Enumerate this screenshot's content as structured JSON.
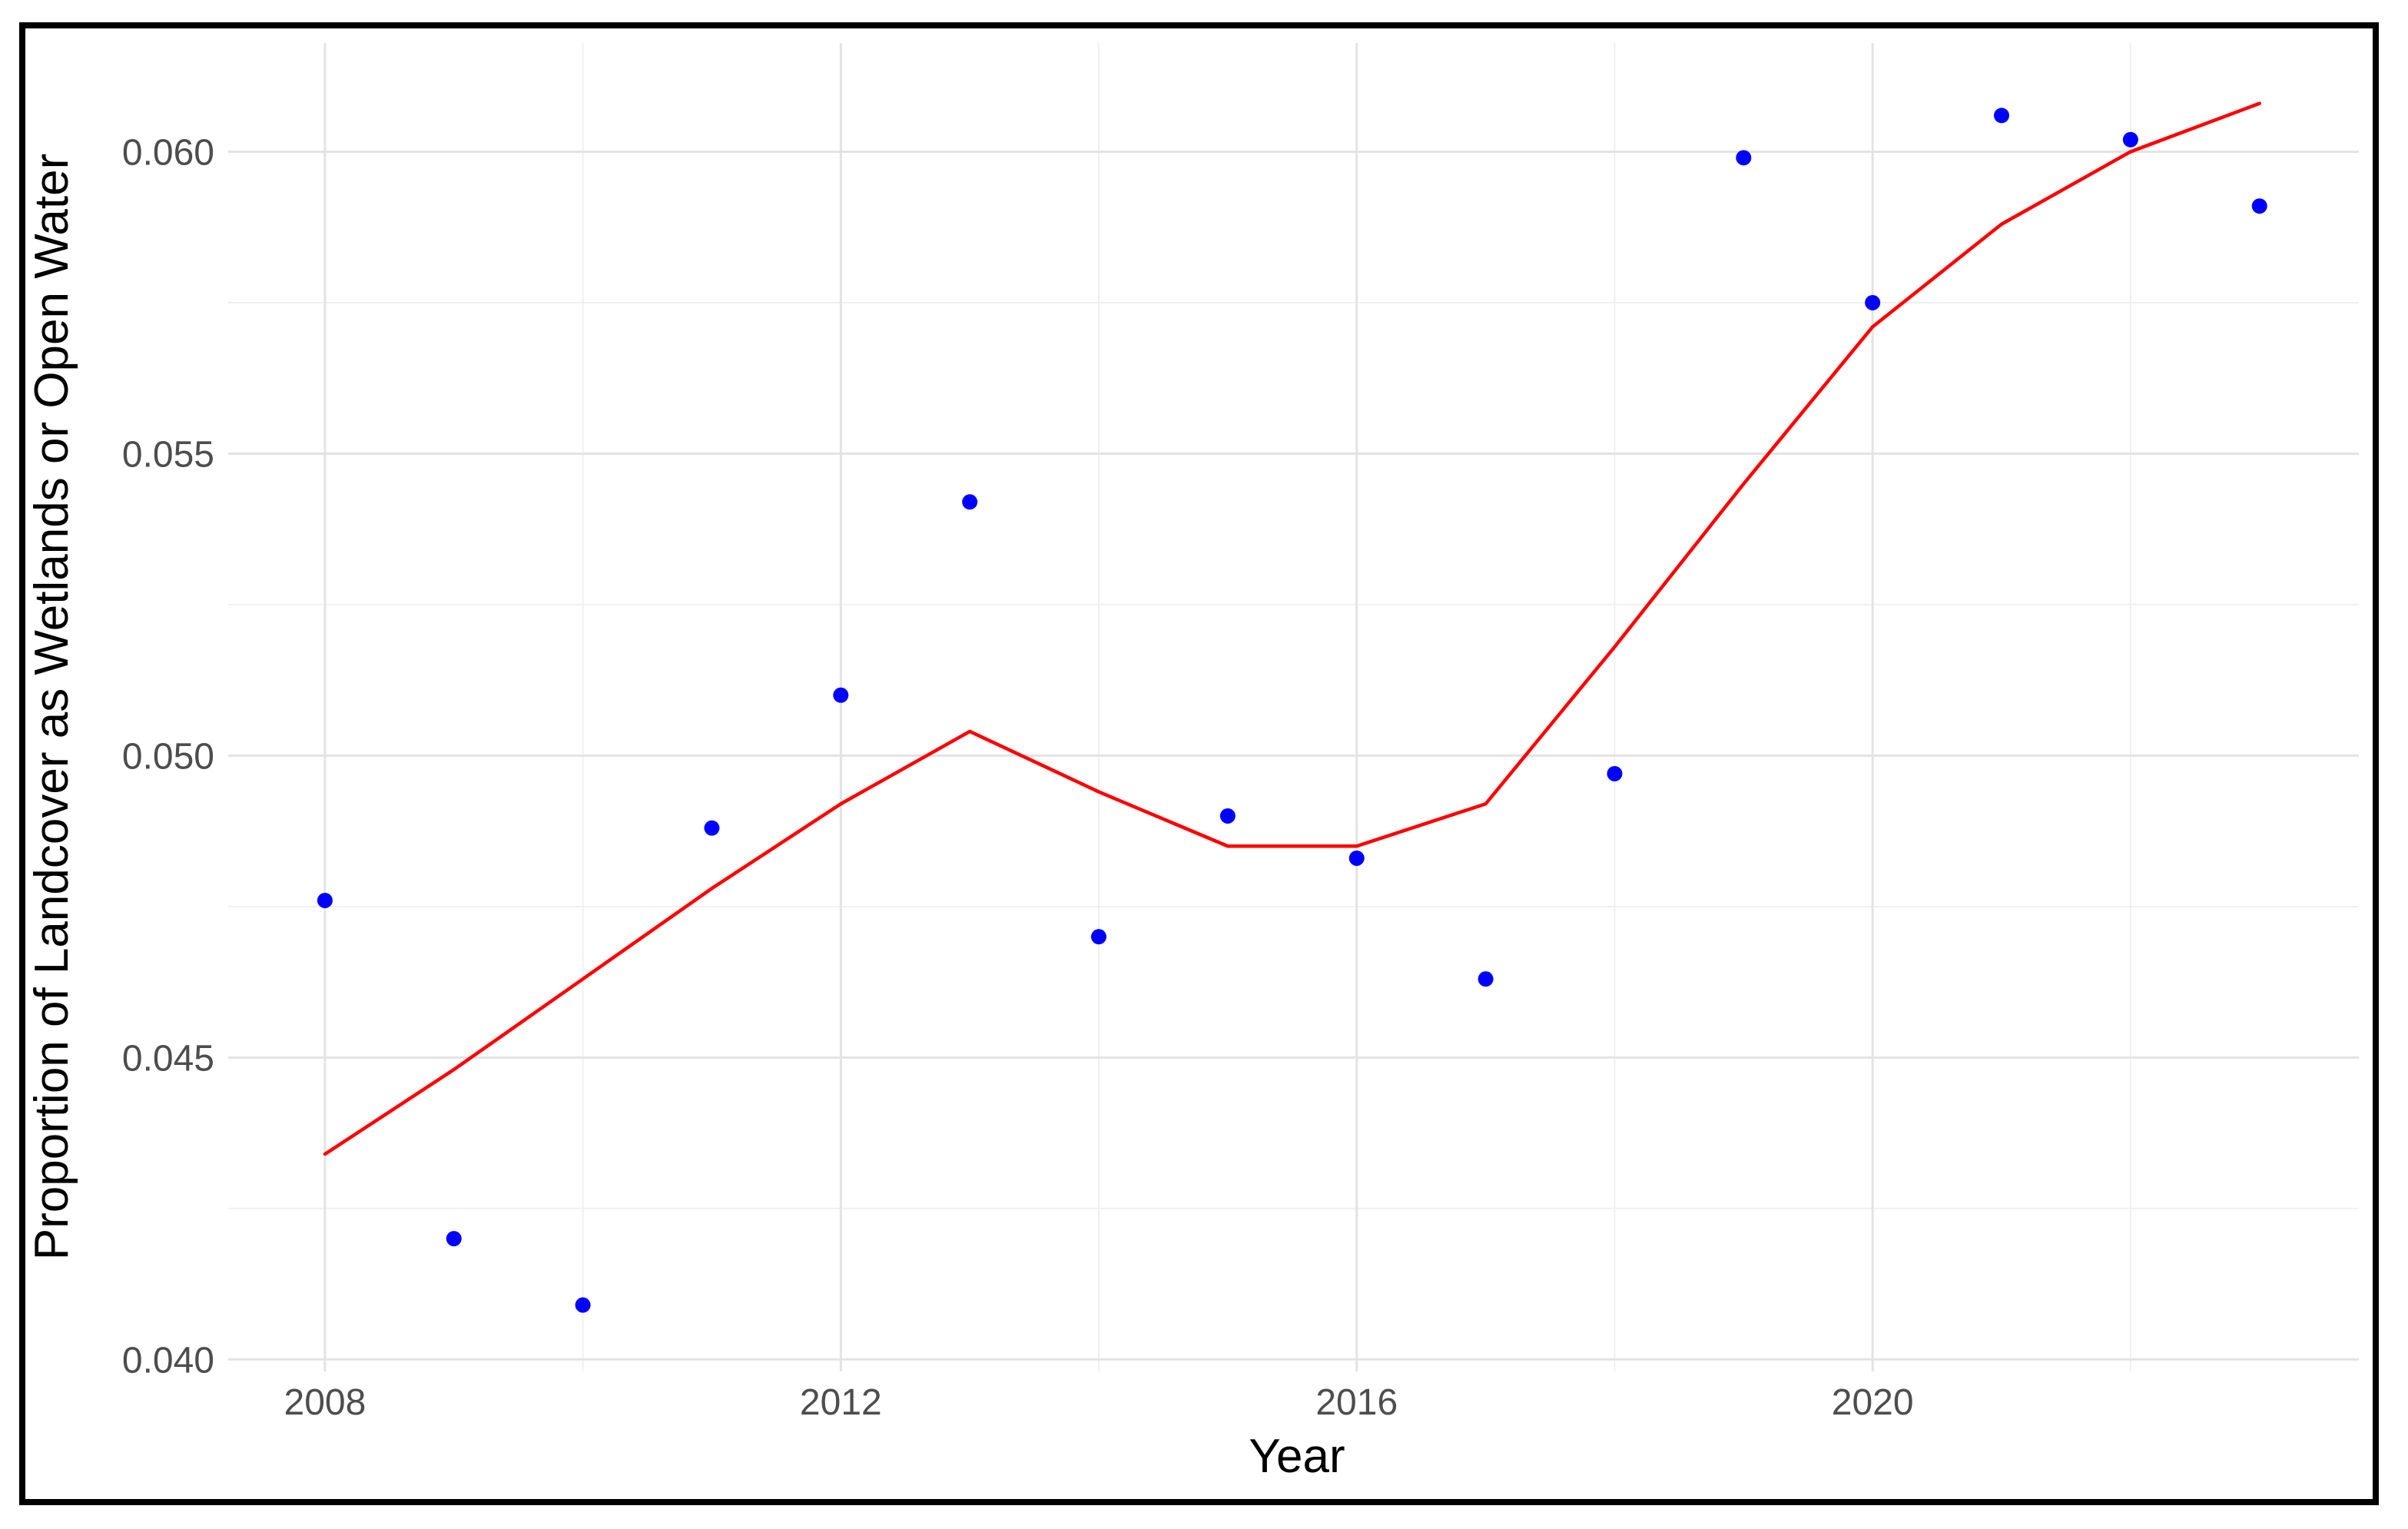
{
  "figure": {
    "background_color": "#FFFFFF",
    "border_color": "#000000"
  },
  "chart_data": {
    "type": "scatter",
    "title": "",
    "xlabel": "Year",
    "ylabel": "Proportion of Landcover as Wetlands or Open Water",
    "grid": true,
    "legend": "none",
    "xlim": [
      2007.25,
      2023.77
    ],
    "ylim": [
      0.0398,
      0.0618
    ],
    "x_major_ticks": [
      2008,
      2012,
      2016,
      2020
    ],
    "x_major_tick_labels": [
      "2008",
      "2012",
      "2016",
      "2020"
    ],
    "x_minor_ticks": [
      2010,
      2014,
      2018,
      2022
    ],
    "y_major_ticks": [
      0.04,
      0.045,
      0.05,
      0.055,
      0.06
    ],
    "y_major_tick_labels": [
      "0.040",
      "0.045",
      "0.050",
      "0.055",
      "0.060"
    ],
    "y_minor_ticks": [
      0.0425,
      0.0475,
      0.0525,
      0.0575
    ],
    "series": [
      {
        "name": "observed-points",
        "type": "scatter",
        "color": "#0000FF",
        "x": [
          2008,
          2009,
          2010,
          2011,
          2012,
          2013,
          2014,
          2015,
          2016,
          2017,
          2018,
          2019,
          2020,
          2021,
          2022,
          2023
        ],
        "y": [
          0.0476,
          0.042,
          0.0409,
          0.0488,
          0.051,
          0.0542,
          0.047,
          0.049,
          0.0483,
          0.0463,
          0.0497,
          0.0599,
          0.0575,
          0.0606,
          0.0602,
          0.0591
        ]
      },
      {
        "name": "loess-smooth-line",
        "type": "line",
        "color": "#FF0000",
        "x": [
          2008,
          2009,
          2010,
          2011,
          2012,
          2013,
          2014,
          2015,
          2016,
          2017,
          2018,
          2019,
          2020,
          2021,
          2022,
          2023
        ],
        "y": [
          0.0434,
          0.0448,
          0.0463,
          0.0478,
          0.0492,
          0.0504,
          0.0494,
          0.0485,
          0.0485,
          0.0492,
          0.0518,
          0.0545,
          0.0571,
          0.0588,
          0.06,
          0.0608
        ]
      }
    ],
    "style": {
      "point_color": "#0000FF",
      "line_color": "#FF0000",
      "major_grid_color": "#E3E3E3",
      "minor_grid_color": "#EFEFEF",
      "tick_label_color": "#4D4D4D",
      "axis_title_color": "#000000"
    }
  }
}
